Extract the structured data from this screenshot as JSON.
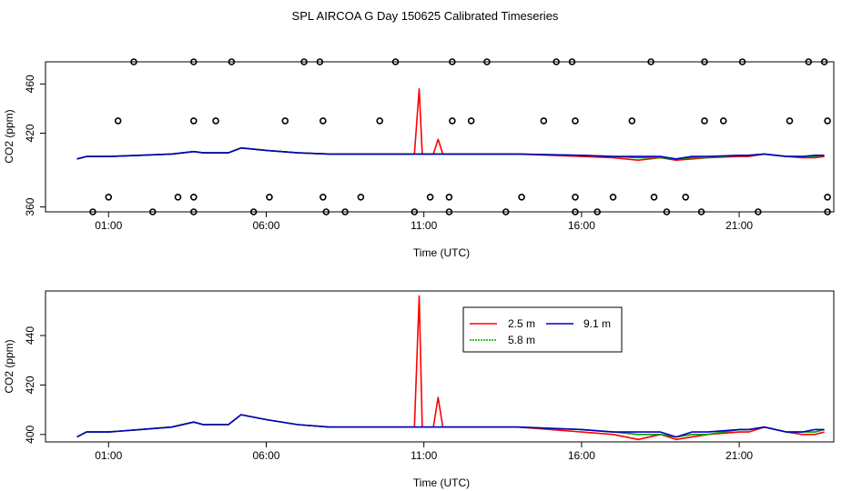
{
  "title": "SPL AIRCOA G  Day 150625  Calibrated Timeseries",
  "chart_data": [
    {
      "type": "line",
      "panel": "top",
      "xlabel": "Time (UTC)",
      "ylabel": "CO2 (ppm)",
      "x_ticks": [
        1,
        6,
        11,
        16,
        21
      ],
      "x_tick_labels": [
        "01:00",
        "06:00",
        "11:00",
        "16:00",
        "21:00"
      ],
      "y_ticks": [
        360,
        420,
        460
      ],
      "y_tick_labels": [
        "360",
        "420",
        "460"
      ],
      "xlim": [
        -1,
        24
      ],
      "ylim": [
        356,
        478
      ],
      "grid": false,
      "series": [
        {
          "color": "#ff0000",
          "x": [
            0.0,
            0.3,
            1.0,
            2.0,
            3.0,
            3.7,
            4.0,
            4.8,
            5.2,
            6.0,
            7.0,
            8.0,
            9.0,
            10.0,
            10.7,
            10.85,
            10.95,
            11.05,
            11.3,
            11.45,
            11.6,
            12.0,
            14.0,
            16.0,
            17.0,
            17.8,
            18.5,
            19.0,
            19.5,
            20.0,
            21.0,
            21.3,
            21.8,
            22.5,
            23.0,
            23.4,
            23.7
          ],
          "y": [
            399,
            401,
            401,
            402,
            403,
            405,
            404,
            404,
            408,
            406,
            404,
            403,
            403,
            403,
            403,
            456,
            403,
            403,
            403,
            415,
            403,
            403,
            403,
            401,
            400,
            398,
            400,
            398,
            399,
            400,
            401,
            401,
            403,
            401,
            400,
            400,
            401
          ]
        },
        {
          "color": "#00a000",
          "x": [
            0.0,
            0.3,
            1.0,
            2.0,
            3.0,
            3.7,
            4.0,
            4.8,
            5.2,
            6.0,
            7.0,
            8.0,
            9.0,
            10.0,
            11.0,
            12.0,
            14.0,
            16.0,
            17.0,
            17.8,
            18.5,
            19.0,
            19.5,
            20.0,
            21.0,
            21.3,
            21.8,
            22.5,
            23.0,
            23.4,
            23.7
          ],
          "y": [
            399,
            401,
            401,
            402,
            403,
            405,
            404,
            404,
            408,
            406,
            404,
            403,
            403,
            403,
            403,
            403,
            403,
            402,
            401,
            400,
            400,
            399,
            400,
            400,
            402,
            402,
            403,
            401,
            401,
            401,
            402
          ]
        },
        {
          "color": "#0000c0",
          "x": [
            0.0,
            0.3,
            1.0,
            2.0,
            3.0,
            3.7,
            4.0,
            4.8,
            5.2,
            6.0,
            7.0,
            8.0,
            9.0,
            10.0,
            11.0,
            12.0,
            14.0,
            16.0,
            17.0,
            17.8,
            18.5,
            19.0,
            19.5,
            20.0,
            21.0,
            21.3,
            21.8,
            22.5,
            23.0,
            23.4,
            23.7
          ],
          "y": [
            399,
            401,
            401,
            402,
            403,
            405,
            404,
            404,
            408,
            406,
            404,
            403,
            403,
            403,
            403,
            403,
            403,
            402,
            401,
            401,
            401,
            399,
            401,
            401,
            402,
            402,
            403,
            401,
            401,
            402,
            402
          ]
        }
      ],
      "points": {
        "marker": "open-circle",
        "x": [
          1.8,
          3.7,
          4.9,
          7.2,
          7.7,
          10.1,
          11.9,
          13.0,
          15.2,
          15.7,
          18.2,
          19.9,
          21.1,
          23.2,
          23.7,
          1.3,
          3.7,
          4.4,
          6.6,
          7.8,
          9.6,
          11.9,
          12.5,
          14.8,
          15.8,
          17.6,
          19.9,
          20.5,
          22.6,
          23.8,
          1.0,
          3.2,
          3.7,
          6.1,
          7.8,
          9.0,
          11.2,
          11.8,
          14.1,
          15.8,
          17.0,
          18.3,
          19.3,
          23.8,
          0.5,
          2.4,
          3.7,
          5.6,
          7.9,
          8.5,
          10.7,
          11.8,
          13.6,
          15.8,
          16.5,
          18.7,
          19.8,
          21.6,
          23.8
        ],
        "y": [
          478,
          478,
          478,
          478,
          478,
          478,
          478,
          478,
          478,
          478,
          478,
          478,
          478,
          478,
          478,
          430,
          430,
          430,
          430,
          430,
          430,
          430,
          430,
          430,
          430,
          430,
          430,
          430,
          430,
          430,
          368,
          368,
          368,
          368,
          368,
          368,
          368,
          368,
          368,
          368,
          368,
          368,
          368,
          368,
          356,
          356,
          356,
          356,
          356,
          356,
          356,
          356,
          356,
          356,
          356,
          356,
          356,
          356,
          356
        ]
      }
    },
    {
      "type": "line",
      "panel": "bottom",
      "xlabel": "Time (UTC)",
      "ylabel": "CO2 (ppm)",
      "x_ticks": [
        1,
        6,
        11,
        16,
        21
      ],
      "x_tick_labels": [
        "01:00",
        "06:00",
        "11:00",
        "16:00",
        "21:00"
      ],
      "y_ticks": [
        400,
        420,
        440
      ],
      "y_tick_labels": [
        "400",
        "420",
        "440"
      ],
      "xlim": [
        -1,
        24
      ],
      "ylim": [
        397,
        458
      ],
      "grid": false,
      "legend": {
        "placement": "top-center",
        "entries": [
          {
            "label": "2.5 m",
            "color": "#ff0000"
          },
          {
            "label": "9.1 m",
            "color": "#0000c0"
          },
          {
            "label": "5.8 m",
            "color": "#00a000"
          }
        ]
      },
      "series": [
        {
          "name": "2.5 m",
          "color": "#ff0000",
          "x": [
            0.0,
            0.3,
            1.0,
            2.0,
            3.0,
            3.7,
            4.0,
            4.8,
            5.2,
            6.0,
            7.0,
            8.0,
            9.0,
            10.0,
            10.7,
            10.85,
            10.95,
            11.05,
            11.3,
            11.45,
            11.6,
            12.0,
            14.0,
            16.0,
            17.0,
            17.8,
            18.5,
            19.0,
            19.5,
            20.0,
            21.0,
            21.3,
            21.8,
            22.5,
            23.0,
            23.4,
            23.7
          ],
          "y": [
            399,
            401,
            401,
            402,
            403,
            405,
            404,
            404,
            408,
            406,
            404,
            403,
            403,
            403,
            403,
            456,
            403,
            403,
            403,
            415,
            403,
            403,
            403,
            401,
            400,
            398,
            400,
            398,
            399,
            400,
            401,
            401,
            403,
            401,
            400,
            400,
            401
          ]
        },
        {
          "name": "5.8 m",
          "color": "#00a000",
          "x": [
            0.0,
            0.3,
            1.0,
            2.0,
            3.0,
            3.7,
            4.0,
            4.8,
            5.2,
            6.0,
            7.0,
            8.0,
            9.0,
            10.0,
            11.0,
            12.0,
            14.0,
            16.0,
            17.0,
            17.8,
            18.5,
            19.0,
            19.5,
            20.0,
            21.0,
            21.3,
            21.8,
            22.5,
            23.0,
            23.4,
            23.7
          ],
          "y": [
            399,
            401,
            401,
            402,
            403,
            405,
            404,
            404,
            408,
            406,
            404,
            403,
            403,
            403,
            403,
            403,
            403,
            402,
            401,
            400,
            400,
            399,
            400,
            400,
            402,
            402,
            403,
            401,
            401,
            401,
            402
          ]
        },
        {
          "name": "9.1 m",
          "color": "#0000c0",
          "x": [
            0.0,
            0.3,
            1.0,
            2.0,
            3.0,
            3.7,
            4.0,
            4.8,
            5.2,
            6.0,
            7.0,
            8.0,
            9.0,
            10.0,
            11.0,
            12.0,
            14.0,
            16.0,
            17.0,
            17.8,
            18.5,
            19.0,
            19.5,
            20.0,
            21.0,
            21.3,
            21.8,
            22.5,
            23.0,
            23.4,
            23.7
          ],
          "y": [
            399,
            401,
            401,
            402,
            403,
            405,
            404,
            404,
            408,
            406,
            404,
            403,
            403,
            403,
            403,
            403,
            403,
            402,
            401,
            401,
            401,
            399,
            401,
            401,
            402,
            402,
            403,
            401,
            401,
            402,
            402
          ]
        }
      ]
    }
  ]
}
